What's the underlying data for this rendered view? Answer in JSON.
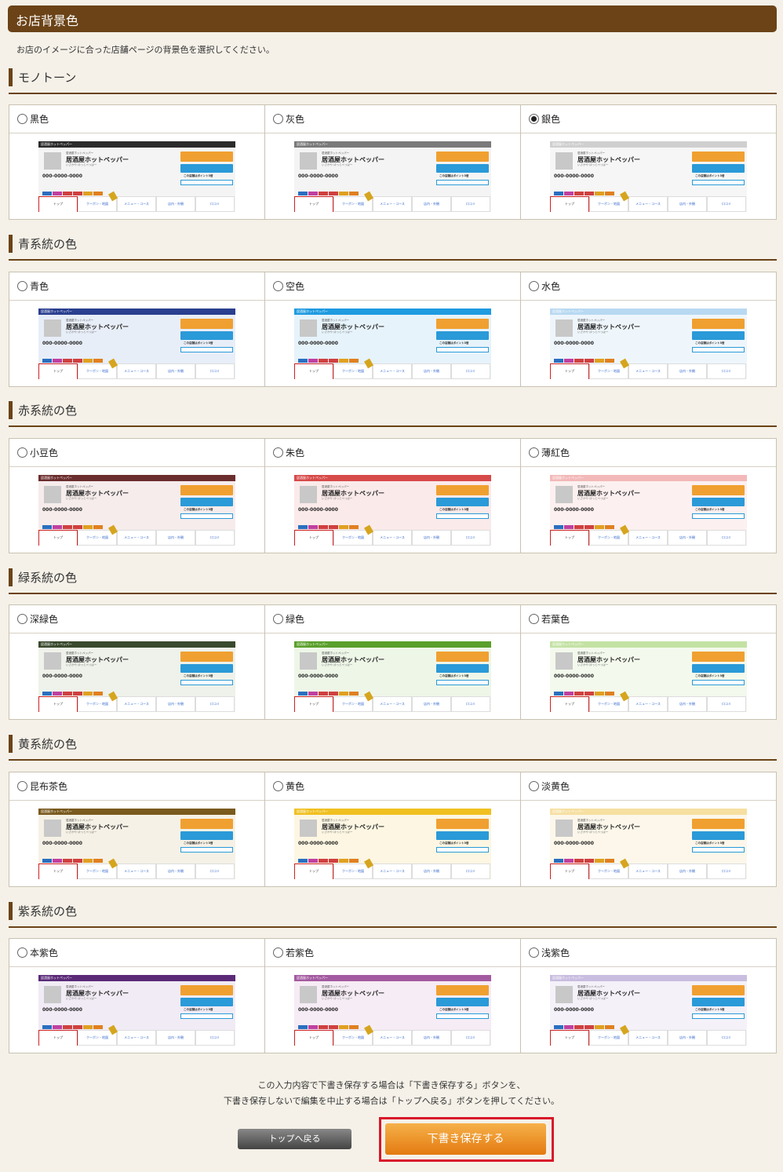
{
  "header": {
    "title": "お店背景色"
  },
  "description": "お店のイメージに合った店舗ページの背景色を選択してください。",
  "preview": {
    "topbar_text": "居酒屋ホットペッパー",
    "small_text": "居酒屋ホットペッパー",
    "shop_name": "居酒屋ホットペッパー",
    "sub_text": "いざかや ほっとぺっぱー",
    "tel": "000-0000-0000",
    "point_text": "この店舗はポイント3倍",
    "tabs": [
      "トップ",
      "クーポン・地図",
      "メニュー・コース",
      "店内・外観",
      "口コミ"
    ]
  },
  "sections": [
    {
      "title": "モノトーン",
      "options": [
        {
          "label": "黒色",
          "color": "#2b2b2b",
          "bg": "#f4f4f4",
          "selected": false
        },
        {
          "label": "灰色",
          "color": "#7a7a7a",
          "bg": "#f4f4f4",
          "selected": false
        },
        {
          "label": "銀色",
          "color": "#cfcfcf",
          "bg": "#f6f6f6",
          "selected": true
        }
      ]
    },
    {
      "title": "青系統の色",
      "options": [
        {
          "label": "青色",
          "color": "#2a3f8f",
          "bg": "#e8eef8",
          "selected": false
        },
        {
          "label": "空色",
          "color": "#1f9be0",
          "bg": "#e6f3fb",
          "selected": false
        },
        {
          "label": "水色",
          "color": "#b8d9f2",
          "bg": "#eef6fc",
          "selected": false
        }
      ]
    },
    {
      "title": "赤系統の色",
      "options": [
        {
          "label": "小豆色",
          "color": "#6b2d2d",
          "bg": "#f6ecec",
          "selected": false
        },
        {
          "label": "朱色",
          "color": "#d74a4a",
          "bg": "#fbeaea",
          "selected": false
        },
        {
          "label": "薄紅色",
          "color": "#f3b8b8",
          "bg": "#fcf0f0",
          "selected": false
        }
      ]
    },
    {
      "title": "緑系統の色",
      "options": [
        {
          "label": "深緑色",
          "color": "#3a4a2e",
          "bg": "#eef2ea",
          "selected": false
        },
        {
          "label": "緑色",
          "color": "#5aa02c",
          "bg": "#eef6e8",
          "selected": false
        },
        {
          "label": "若葉色",
          "color": "#c4e2a4",
          "bg": "#f3f9ec",
          "selected": false
        }
      ]
    },
    {
      "title": "黄系統の色",
      "options": [
        {
          "label": "昆布茶色",
          "color": "#7a5a1e",
          "bg": "#f6f1e6",
          "selected": false
        },
        {
          "label": "黄色",
          "color": "#f0c020",
          "bg": "#fcf6e2",
          "selected": false
        },
        {
          "label": "淡黄色",
          "color": "#f6dfa0",
          "bg": "#fcf7ea",
          "selected": false
        }
      ]
    },
    {
      "title": "紫系統の色",
      "options": [
        {
          "label": "本紫色",
          "color": "#5a2a78",
          "bg": "#f1ebf5",
          "selected": false
        },
        {
          "label": "若紫色",
          "color": "#a45aa0",
          "bg": "#f6ecf5",
          "selected": false
        },
        {
          "label": "浅紫色",
          "color": "#c9bde0",
          "bg": "#f4f1f9",
          "selected": false
        }
      ]
    }
  ],
  "footer": {
    "note_line1": "この入力内容で下書き保存する場合は「下書き保存する」ボタンを、",
    "note_line2": "下書き保存しないで編集を中止する場合は「トップへ戻る」ボタンを押してください。",
    "back_label": "トップへ戻る",
    "save_label": "下書き保存する"
  }
}
